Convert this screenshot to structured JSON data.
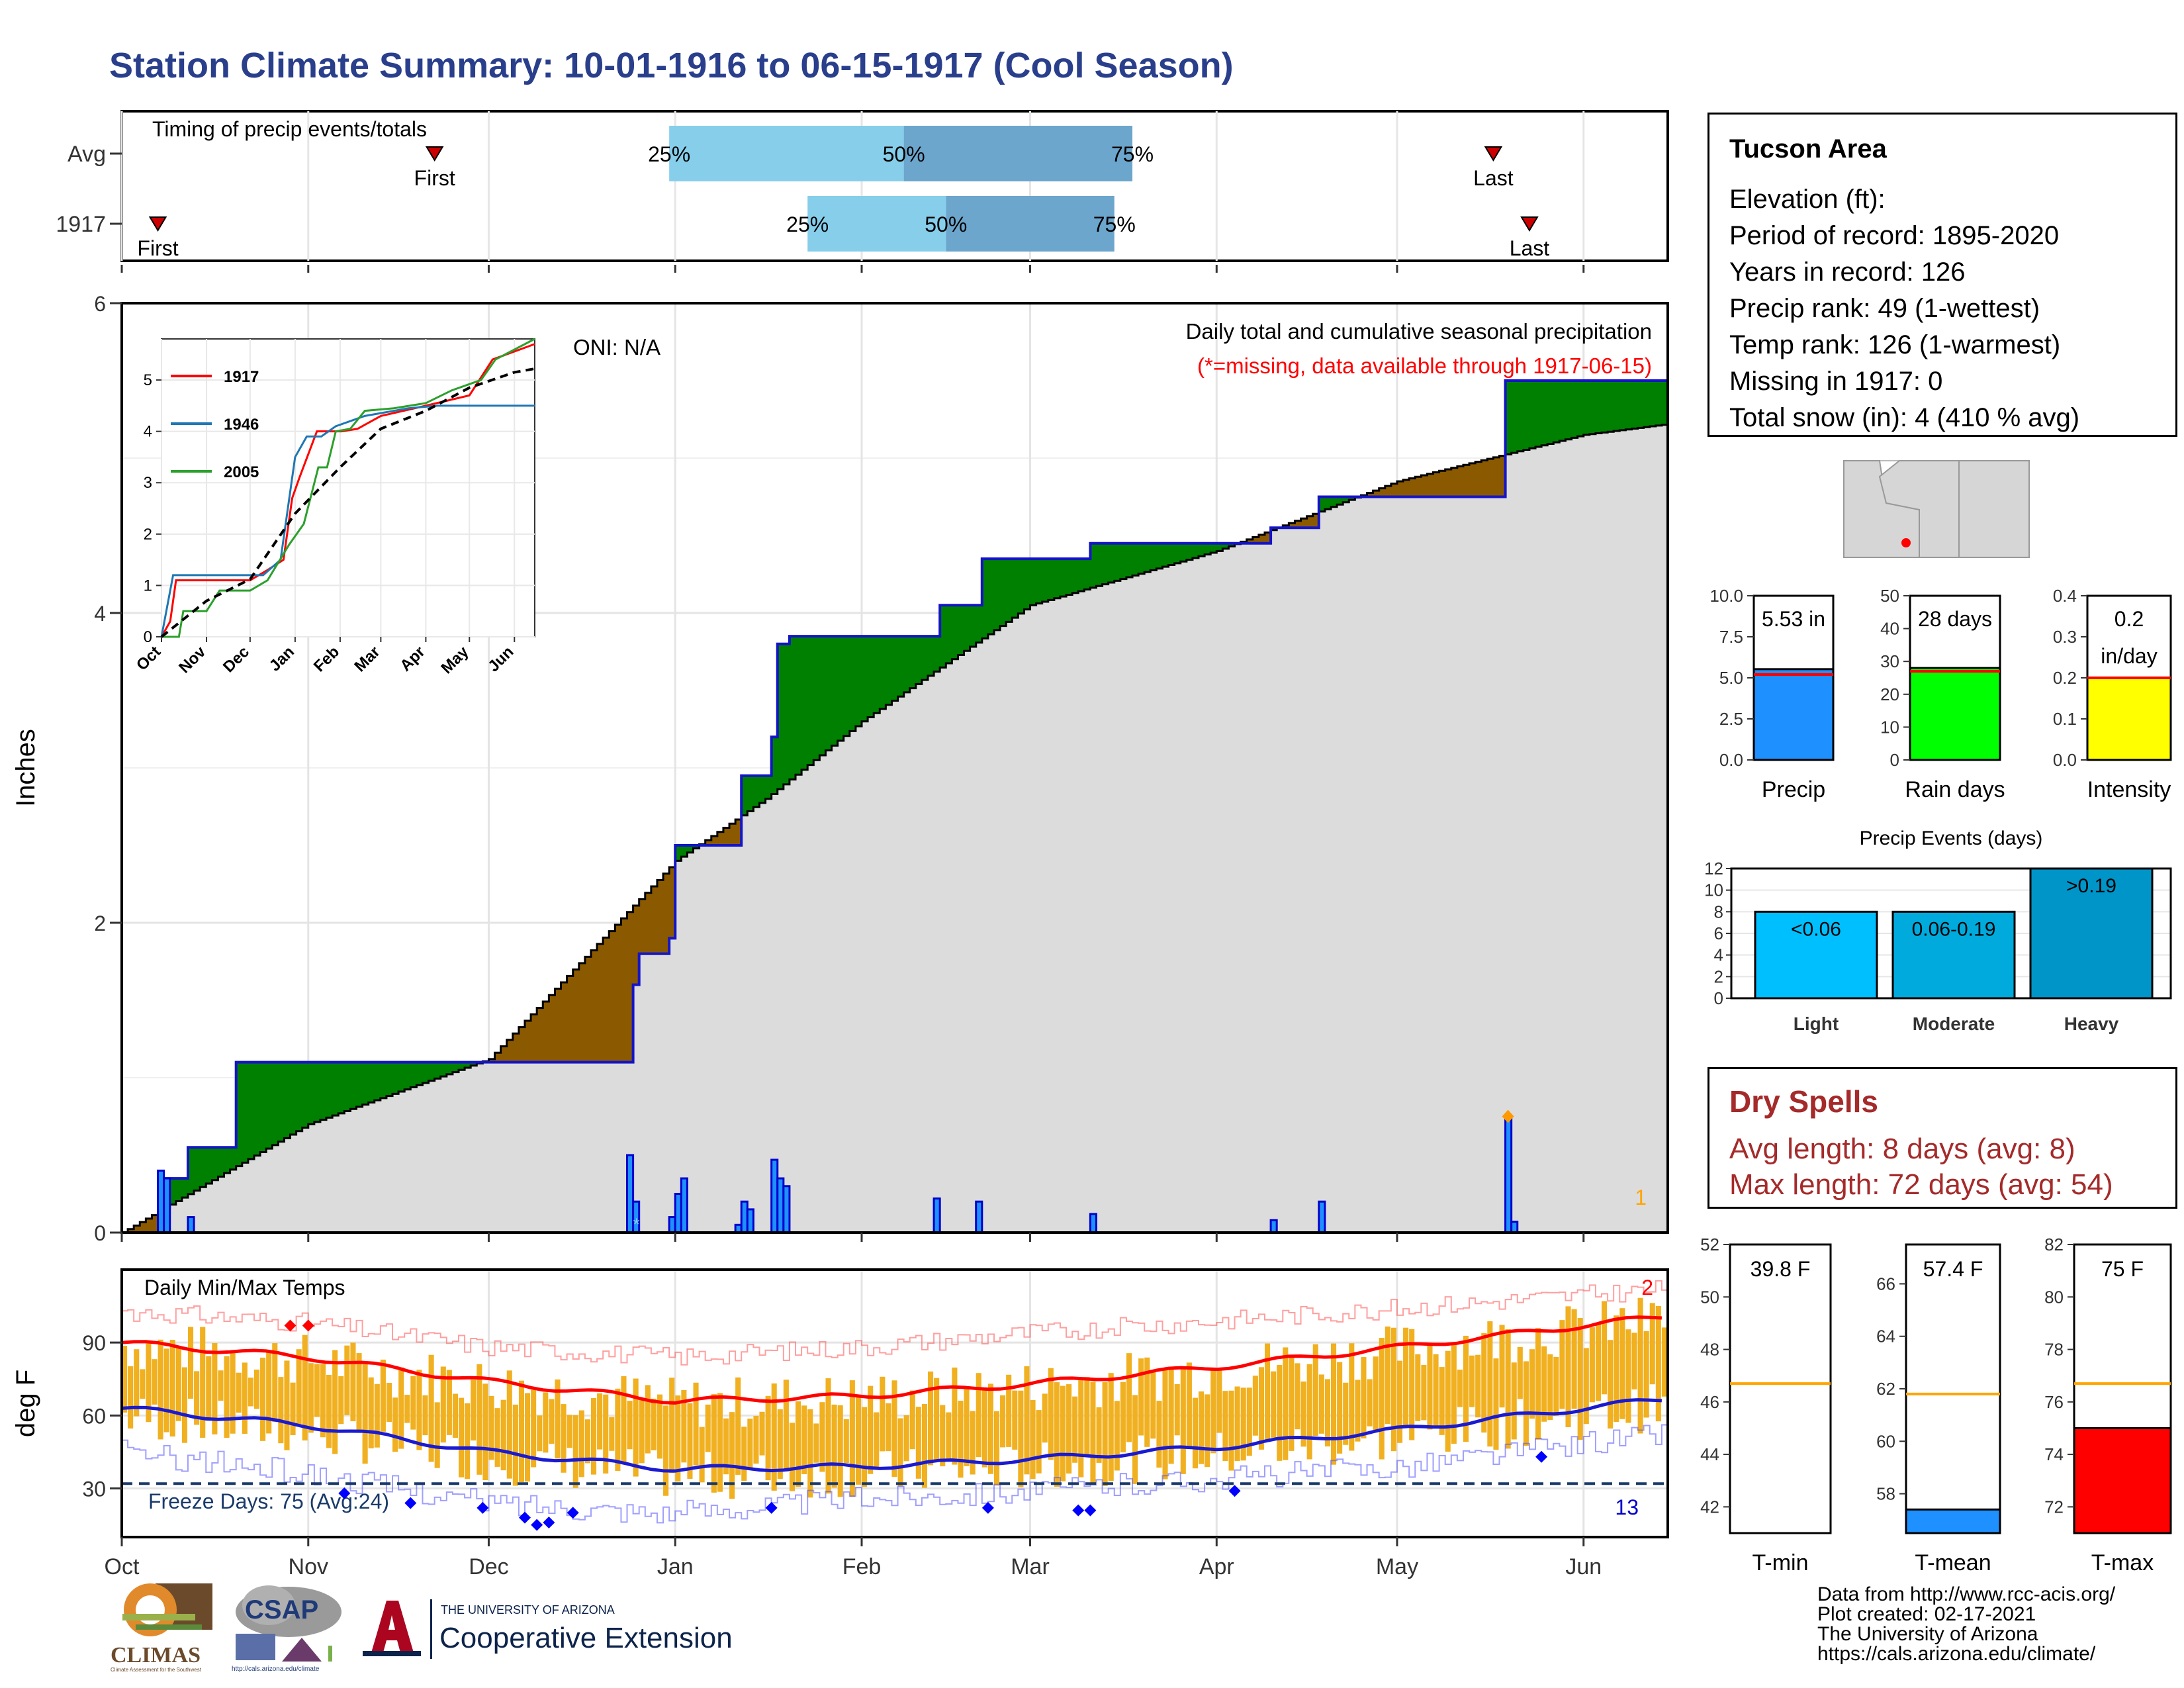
{
  "title": "Station Climate Summary: 10-01-1916 to 06-15-1917 (Cool Season)",
  "colors": {
    "title": "#2a3f8c",
    "surplus": "#008000",
    "deficit": "#8b5a00",
    "normal_fill": "#dcdcdc",
    "precip_line": "#1414c8",
    "temp_bar": "#f0b020",
    "max_normal": "#ff0000",
    "min_normal": "#1a1ad0",
    "q1": "#87ceeb",
    "q2": "#6ca6cd",
    "precip_bar": "#1e90ff",
    "raindays_bar": "#00ff00",
    "intensity_bar": "#ffff00",
    "light": "#00bfff",
    "moderate": "#00aadd",
    "heavy": "#0095c8",
    "tmean_bar": "#1e90ff",
    "tmax_bar": "#ff0000",
    "avg_line": "#ffa500"
  },
  "timing": {
    "label": "Timing of precip events/totals",
    "rows": [
      {
        "name": "Avg",
        "first": "First",
        "last": "Last",
        "q25": "25%",
        "q50": "50%",
        "q75": "75%",
        "first_day": 52,
        "q25_day": 91,
        "q50_day": 130,
        "q75_day": 168,
        "last_day": 228
      },
      {
        "name": "1917",
        "first": "First",
        "last": "Last",
        "q25": "25%",
        "q50": "50%",
        "q75": "75%",
        "first_day": 6,
        "q25_day": 114,
        "q50_day": 137,
        "q75_day": 165,
        "last_day": 234
      }
    ]
  },
  "precip": {
    "ylabel": "Inches",
    "label": "Daily total and cumulative seasonal precipitation",
    "missing_note": "(*=missing, data available through 1917-06-15)",
    "oni": "ONI: N/A",
    "corner_count": "1",
    "yticks": [
      "0",
      "2",
      "4",
      "6"
    ]
  },
  "chart_data": [
    {
      "type": "area",
      "title": "Daily total and cumulative seasonal precipitation",
      "ylabel": "Inches",
      "ylim": [
        0,
        6
      ],
      "x_ticks": [
        "Oct",
        "Nov",
        "Dec",
        "Jan",
        "Feb",
        "Mar",
        "Apr",
        "May",
        "Jun"
      ],
      "normal_cumulative": [
        [
          0,
          0
        ],
        [
          31,
          0.7
        ],
        [
          61,
          1.12
        ],
        [
          92,
          2.4
        ],
        [
          107,
          2.8
        ],
        [
          123,
          3.3
        ],
        [
          151,
          4.05
        ],
        [
          182,
          4.4
        ],
        [
          212,
          4.85
        ],
        [
          243,
          5.15
        ],
        [
          257,
          5.22
        ]
      ],
      "observed_cumulative": [
        [
          0,
          0
        ],
        [
          6,
          0
        ],
        [
          7,
          0.35
        ],
        [
          11,
          0.55
        ],
        [
          18,
          0.55
        ],
        [
          19,
          1.1
        ],
        [
          84,
          1.1
        ],
        [
          85,
          1.6
        ],
        [
          86,
          1.8
        ],
        [
          91,
          1.9
        ],
        [
          92,
          2.5
        ],
        [
          102,
          2.5
        ],
        [
          103,
          2.95
        ],
        [
          108,
          3.2
        ],
        [
          109,
          3.8
        ],
        [
          110,
          3.8
        ],
        [
          111,
          3.85
        ],
        [
          135,
          3.85
        ],
        [
          136,
          4.05
        ],
        [
          142,
          4.05
        ],
        [
          143,
          4.35
        ],
        [
          160,
          4.35
        ],
        [
          161,
          4.45
        ],
        [
          190,
          4.45
        ],
        [
          191,
          4.55
        ],
        [
          198,
          4.55
        ],
        [
          199,
          4.75
        ],
        [
          229,
          4.75
        ],
        [
          230,
          5.5
        ],
        [
          257,
          5.5
        ]
      ],
      "daily_precip": [
        [
          6,
          0.4
        ],
        [
          7,
          0.35
        ],
        [
          11,
          0.1
        ],
        [
          84,
          0.5
        ],
        [
          85,
          0.2
        ],
        [
          91,
          0.1
        ],
        [
          92,
          0.25
        ],
        [
          93,
          0.35
        ],
        [
          102,
          0.05
        ],
        [
          103,
          0.2
        ],
        [
          104,
          0.15
        ],
        [
          108,
          0.47
        ],
        [
          109,
          0.35
        ],
        [
          110,
          0.3
        ],
        [
          135,
          0.22
        ],
        [
          142,
          0.2
        ],
        [
          161,
          0.12
        ],
        [
          191,
          0.08
        ],
        [
          199,
          0.2
        ],
        [
          230,
          0.75
        ],
        [
          231,
          0.07
        ]
      ],
      "trace_marks": [
        [
          85,
          0.05
        ],
        [
          230,
          0.75
        ]
      ]
    },
    {
      "type": "line",
      "title": "",
      "x_ticks": [
        "Oct",
        "Nov",
        "Dec",
        "Jan",
        "Feb",
        "Mar",
        "Apr",
        "May",
        "Jun"
      ],
      "y_ticks": [
        "0",
        "1",
        "2",
        "3",
        "4",
        "5"
      ],
      "ylim": [
        0,
        5.8
      ],
      "series": [
        {
          "name": "1917",
          "color": "#ff0000",
          "values": [
            [
              0,
              0
            ],
            [
              6,
              0.3
            ],
            [
              10,
              1.1
            ],
            [
              31,
              1.1
            ],
            [
              61,
              1.1
            ],
            [
              73,
              1.3
            ],
            [
              84,
              1.5
            ],
            [
              90,
              2.7
            ],
            [
              95,
              3.1
            ],
            [
              107,
              4.0
            ],
            [
              124,
              4.0
            ],
            [
              135,
              4.05
            ],
            [
              151,
              4.3
            ],
            [
              182,
              4.5
            ],
            [
              212,
              4.7
            ],
            [
              228,
              5.4
            ],
            [
              257,
              5.7
            ]
          ]
        },
        {
          "name": "1946",
          "color": "#1f77b4",
          "values": [
            [
              0,
              0
            ],
            [
              4,
              0.6
            ],
            [
              8,
              1.2
            ],
            [
              40,
              1.2
            ],
            [
              70,
              1.2
            ],
            [
              82,
              1.5
            ],
            [
              92,
              3.5
            ],
            [
              100,
              3.9
            ],
            [
              110,
              3.9
            ],
            [
              120,
              4.1
            ],
            [
              140,
              4.3
            ],
            [
              170,
              4.45
            ],
            [
              190,
              4.5
            ],
            [
              257,
              4.5
            ]
          ]
        },
        {
          "name": "2005",
          "color": "#2ca02c",
          "values": [
            [
              0,
              0
            ],
            [
              12,
              0
            ],
            [
              15,
              0.5
            ],
            [
              31,
              0.5
            ],
            [
              40,
              0.9
            ],
            [
              61,
              0.9
            ],
            [
              73,
              1.1
            ],
            [
              88,
              1.8
            ],
            [
              98,
              2.2
            ],
            [
              108,
              3.3
            ],
            [
              114,
              3.3
            ],
            [
              120,
              4.0
            ],
            [
              130,
              4.05
            ],
            [
              140,
              4.4
            ],
            [
              160,
              4.45
            ],
            [
              182,
              4.55
            ],
            [
              200,
              4.8
            ],
            [
              220,
              5.0
            ],
            [
              230,
              5.4
            ],
            [
              257,
              5.8
            ]
          ]
        },
        {
          "name": "normal",
          "color": "#000000",
          "values": [
            [
              0,
              0
            ],
            [
              31,
              0.7
            ],
            [
              61,
              1.12
            ],
            [
              92,
              2.4
            ],
            [
              123,
              3.3
            ],
            [
              151,
              4.05
            ],
            [
              182,
              4.4
            ],
            [
              212,
              4.85
            ],
            [
              243,
              5.15
            ],
            [
              257,
              5.22
            ]
          ]
        }
      ]
    },
    {
      "type": "bar",
      "title": "Daily Min/Max Temps",
      "ylabel": "deg F",
      "ylim": [
        10,
        120
      ],
      "yticks": [
        30,
        60,
        90
      ],
      "x_ticks": [
        "Oct",
        "Nov",
        "Dec",
        "Jan",
        "Feb",
        "Mar",
        "Apr",
        "May",
        "Jun"
      ],
      "freeze_line": 32,
      "freeze_label": "Freeze Days: 75 (Avg:24)",
      "max_normal": [
        [
          0,
          90
        ],
        [
          31,
          84
        ],
        [
          61,
          74
        ],
        [
          92,
          66
        ],
        [
          123,
          68
        ],
        [
          151,
          73
        ],
        [
          182,
          80
        ],
        [
          212,
          88
        ],
        [
          243,
          97
        ],
        [
          257,
          101
        ]
      ],
      "min_normal": [
        [
          0,
          63
        ],
        [
          31,
          56
        ],
        [
          61,
          45
        ],
        [
          92,
          38
        ],
        [
          123,
          39
        ],
        [
          151,
          42
        ],
        [
          182,
          47
        ],
        [
          212,
          54
        ],
        [
          243,
          63
        ],
        [
          257,
          67
        ]
      ],
      "record_high_series": [
        [
          0,
          103
        ],
        [
          31,
          98
        ],
        [
          61,
          88
        ],
        [
          92,
          84
        ],
        [
          123,
          88
        ],
        [
          151,
          94
        ],
        [
          182,
          99
        ],
        [
          212,
          104
        ],
        [
          257,
          112
        ]
      ],
      "record_low_series": [
        [
          0,
          45
        ],
        [
          31,
          36
        ],
        [
          61,
          24
        ],
        [
          92,
          20
        ],
        [
          123,
          26
        ],
        [
          151,
          29
        ],
        [
          182,
          34
        ],
        [
          212,
          39
        ],
        [
          257,
          53
        ]
      ],
      "count_high": "2",
      "count_low": "13"
    }
  ],
  "climate_info": {
    "station": "Tucson Area",
    "lines": [
      "Elevation (ft):",
      "Period of record: 1895-2020",
      "Years in record: 126",
      "Precip rank: 49 (1-wettest)",
      "Temp rank: 126 (1-warmest)",
      "Missing in 1917: 0",
      "Total snow (in): 4 (410 % avg)"
    ]
  },
  "gauges": {
    "precip": {
      "label": "Precip",
      "value_label": "5.53 in",
      "value": 5.53,
      "avg": 5.2,
      "ymax": 10,
      "ticks": [
        "0.0",
        "2.5",
        "5.0",
        "7.5",
        "10.0"
      ]
    },
    "raindays": {
      "label": "Rain days",
      "value_label": "28 days",
      "value": 28,
      "avg": 27,
      "ymax": 50,
      "ticks": [
        "0",
        "10",
        "20",
        "30",
        "40",
        "50"
      ]
    },
    "intensity": {
      "label": "Intensity",
      "value_label1": "0.2",
      "value_label2": "in/day",
      "value": 0.2,
      "avg": 0.2,
      "ymax": 0.4,
      "ticks": [
        "0.0",
        "0.1",
        "0.2",
        "0.3",
        "0.4"
      ]
    }
  },
  "events": {
    "title": "Precip Events (days)",
    "ticks": [
      "0",
      "2",
      "4",
      "6",
      "8",
      "10",
      "12"
    ],
    "bars": [
      {
        "category": "Light",
        "label": "<0.06",
        "value": 8
      },
      {
        "category": "Moderate",
        "label": "0.06-0.19",
        "value": 8
      },
      {
        "category": "Heavy",
        "label": ">0.19",
        "value": 12
      }
    ]
  },
  "dry_spells": {
    "title": "Dry Spells",
    "avg": "Avg length: 8 days (avg: 8)",
    "max": "Max length: 72 days (avg: 54)"
  },
  "temp_gauges": {
    "tmin": {
      "label": "T-min",
      "value_label": "39.8 F",
      "value": 39.8,
      "avg": 46.7,
      "ylim": [
        41,
        52
      ],
      "ticks": [
        "42",
        "44",
        "46",
        "48",
        "50",
        "52"
      ]
    },
    "tmean": {
      "label": "T-mean",
      "value_label": "57.4 F",
      "value": 57.4,
      "avg": 61.8,
      "ylim": [
        56.5,
        67.5
      ],
      "ticks": [
        "58",
        "60",
        "62",
        "64",
        "66"
      ]
    },
    "tmax": {
      "label": "T-max",
      "value_label": "75 F",
      "value": 75,
      "avg": 76.7,
      "ylim": [
        71,
        82
      ],
      "ticks": [
        "72",
        "74",
        "76",
        "78",
        "80",
        "82"
      ]
    }
  },
  "footer": {
    "lines": [
      "Data from http://www.rcc-acis.org/",
      "Plot created: 02-17-2021",
      "The University of Arizona",
      "https://cals.arizona.edu/climate/"
    ],
    "logo_climas": "CLIMAS",
    "logo_csap": "CSAP",
    "csap_url": "http://cals.arizona.edu/climate",
    "climas_tagline": "Climate Assessment for the Southwest",
    "ua_small": "THE UNIVERSITY OF ARIZONA",
    "ua_big": "Cooperative Extension"
  }
}
